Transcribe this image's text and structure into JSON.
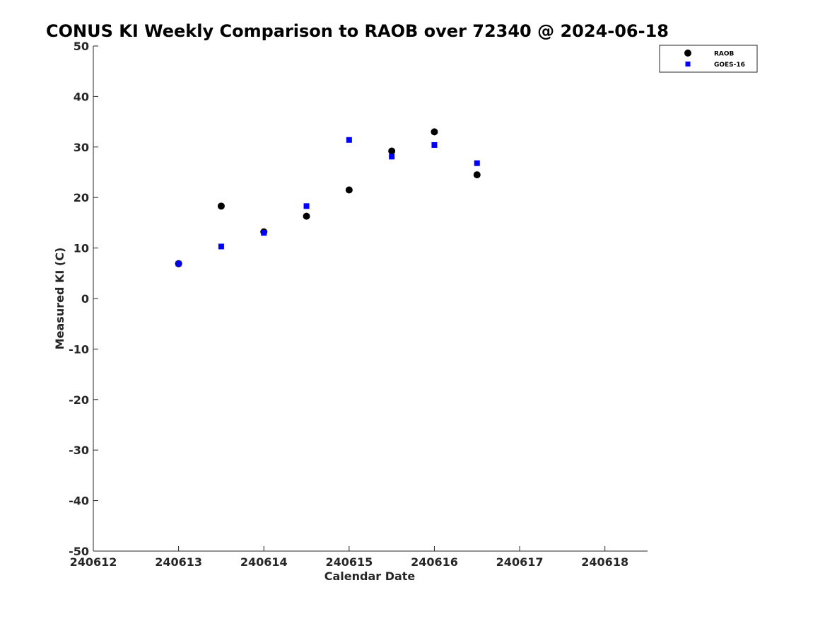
{
  "chart_data": {
    "type": "scatter",
    "title": "CONUS KI Weekly Comparison to RAOB over 72340 @ 2024-06-18",
    "xlabel": "Calendar Date",
    "ylabel": "Measured KI (C)",
    "xlim": [
      240612,
      240618.5
    ],
    "ylim": [
      -50,
      50
    ],
    "x_ticks": [
      240612,
      240613,
      240614,
      240615,
      240616,
      240617,
      240618
    ],
    "x_tick_labels": [
      "240612",
      "240613",
      "240614",
      "240615",
      "240616",
      "240617",
      "240618"
    ],
    "y_ticks": [
      -50,
      -40,
      -30,
      -20,
      -10,
      0,
      10,
      20,
      30,
      40,
      50
    ],
    "y_tick_labels": [
      "-50",
      "-40",
      "-30",
      "-20",
      "-10",
      "0",
      "10",
      "20",
      "30",
      "40",
      "50"
    ],
    "grid": false,
    "legend_position": "top-right",
    "series": [
      {
        "name": "RAOB",
        "marker": "circle",
        "color": "#000000",
        "x": [
          240613,
          240613.5,
          240614,
          240614.5,
          240615,
          240615.5,
          240616,
          240616.5
        ],
        "y": [
          6.9,
          18.3,
          13.2,
          16.3,
          21.5,
          29.2,
          33.0,
          24.5
        ]
      },
      {
        "name": "GOES-16",
        "marker": "square",
        "color": "#0000ff",
        "x": [
          240613,
          240613.5,
          240614,
          240614.5,
          240615,
          240615.5,
          240616,
          240616.5
        ],
        "y": [
          6.9,
          10.3,
          13.0,
          18.3,
          31.4,
          28.1,
          30.4,
          26.8
        ]
      }
    ]
  }
}
